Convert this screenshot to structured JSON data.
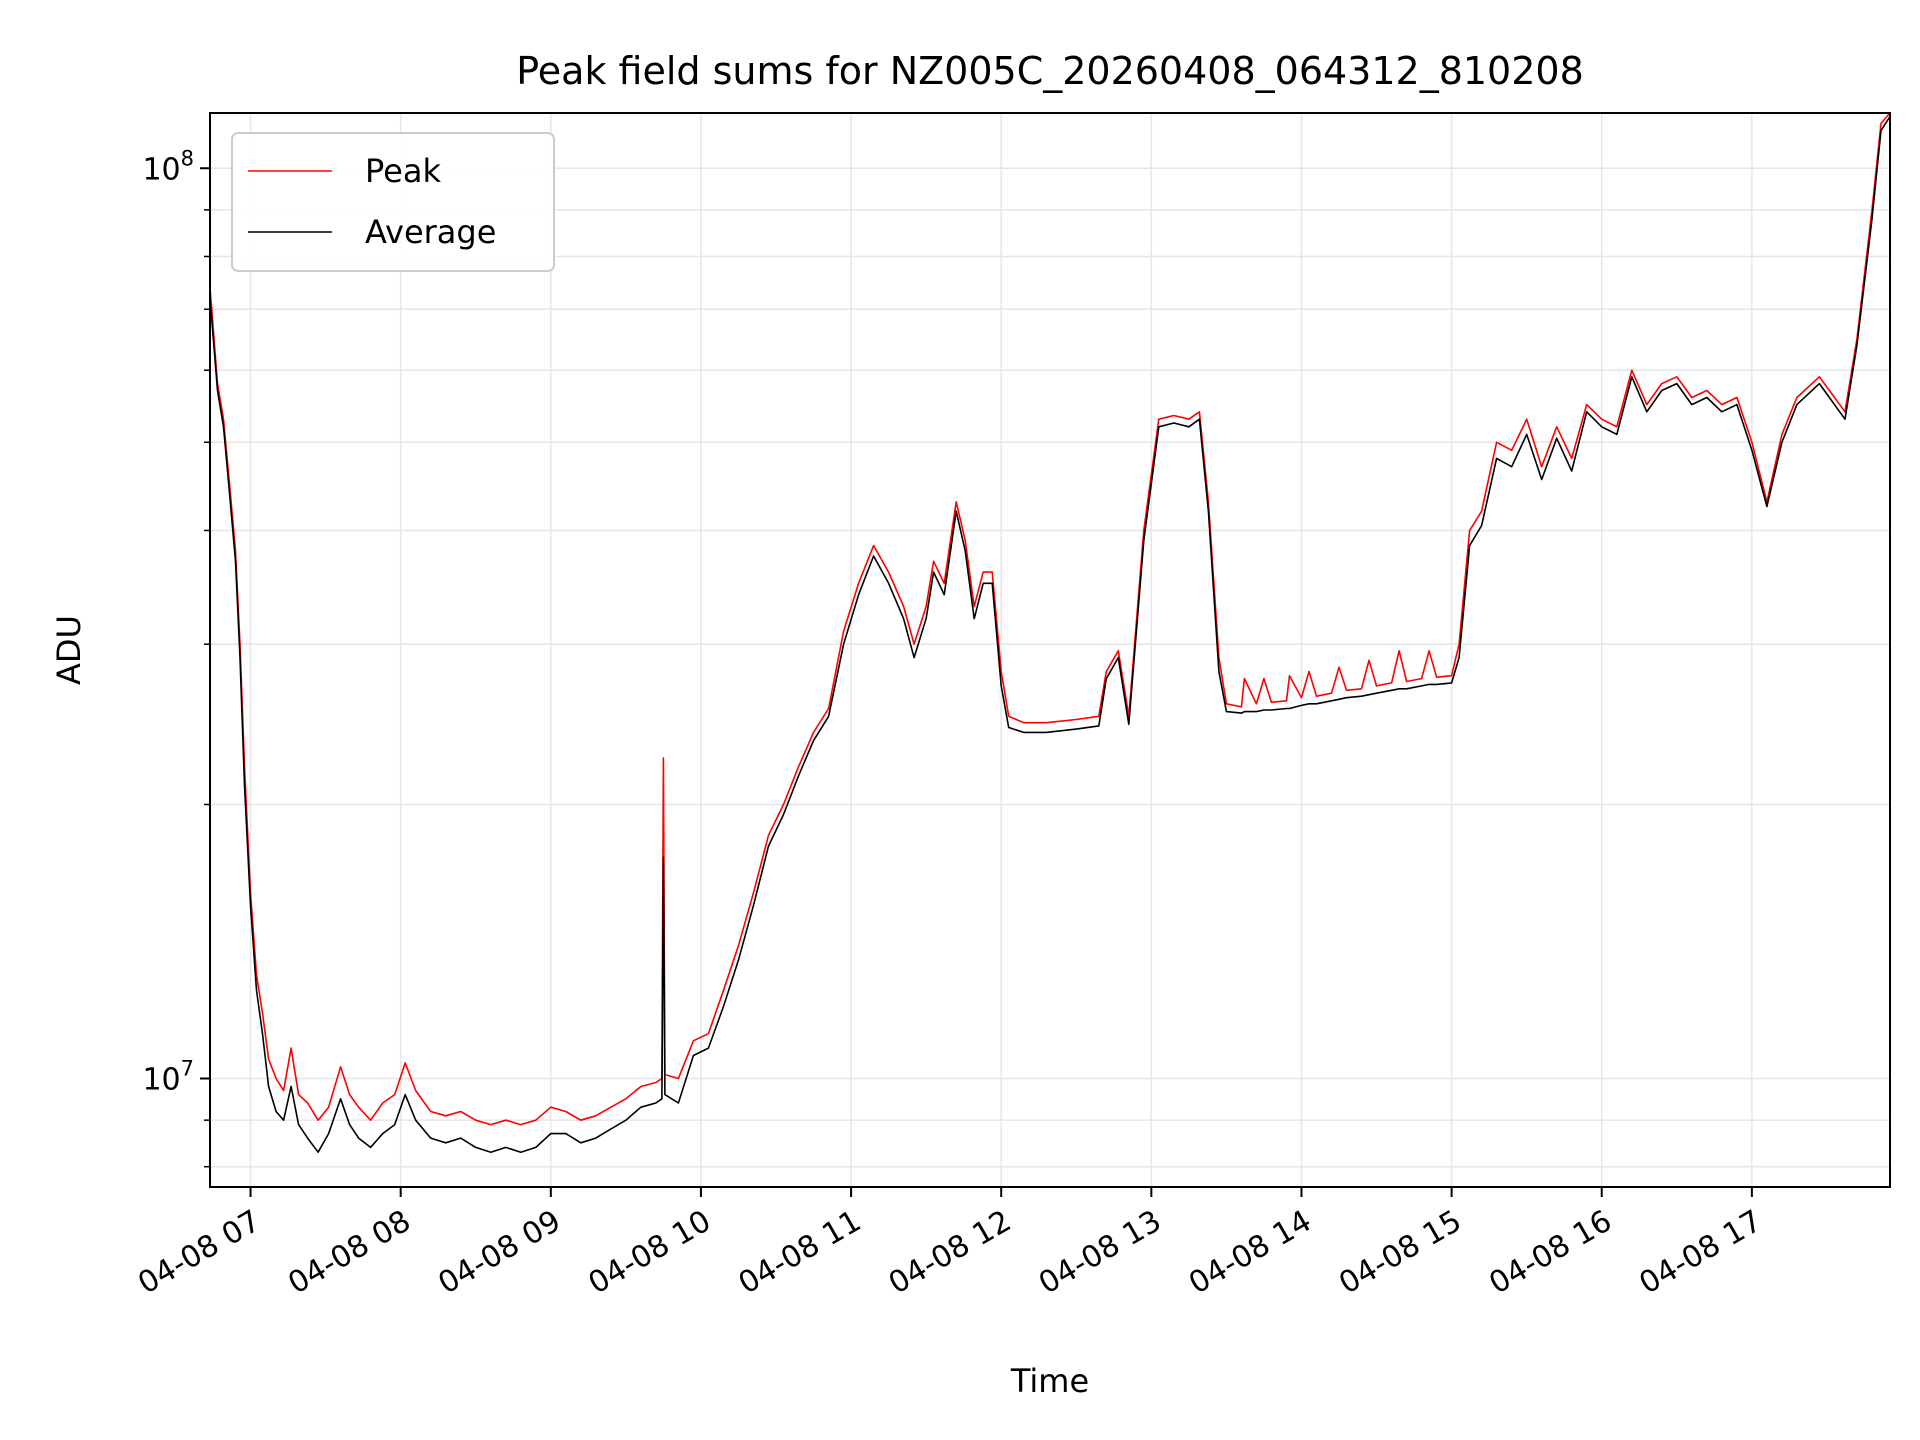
{
  "chart_data": {
    "type": "line",
    "title": "Peak field sums for NZ005C_20260408_064312_810208",
    "xlabel": "Time",
    "ylabel": "ADU",
    "yscale": "log",
    "ylim": [
      7600000,
      115000000
    ],
    "xlim": [
      6.73,
      17.92
    ],
    "grid": true,
    "legend_position": "upper-left",
    "x_ticks": [
      {
        "value": 7,
        "label": "04-08 07"
      },
      {
        "value": 8,
        "label": "04-08 08"
      },
      {
        "value": 9,
        "label": "04-08 09"
      },
      {
        "value": 10,
        "label": "04-08 10"
      },
      {
        "value": 11,
        "label": "04-08 11"
      },
      {
        "value": 12,
        "label": "04-08 12"
      },
      {
        "value": 13,
        "label": "04-08 13"
      },
      {
        "value": 14,
        "label": "04-08 14"
      },
      {
        "value": 15,
        "label": "04-08 15"
      },
      {
        "value": 16,
        "label": "04-08 16"
      },
      {
        "value": 17,
        "label": "04-08 17"
      }
    ],
    "y_ticks_major": [
      {
        "value": 10000000,
        "base": "10",
        "exp": "7"
      },
      {
        "value": 100000000,
        "base": "10",
        "exp": "8"
      }
    ],
    "y_ticks_minor": [
      8000000,
      9000000,
      20000000,
      30000000,
      40000000,
      50000000,
      60000000,
      70000000,
      80000000,
      90000000
    ],
    "series": [
      {
        "name": "Peak",
        "color": "#ff0000",
        "points": [
          [
            6.73,
            74000000
          ],
          [
            6.78,
            58000000
          ],
          [
            6.82,
            53000000
          ],
          [
            6.86,
            45000000
          ],
          [
            6.9,
            38000000
          ],
          [
            6.93,
            30000000
          ],
          [
            6.96,
            22000000
          ],
          [
            7.0,
            16000000
          ],
          [
            7.04,
            13000000
          ],
          [
            7.08,
            11800000
          ],
          [
            7.12,
            10500000
          ],
          [
            7.17,
            10000000
          ],
          [
            7.22,
            9700000
          ],
          [
            7.27,
            10800000
          ],
          [
            7.32,
            9600000
          ],
          [
            7.38,
            9400000
          ],
          [
            7.45,
            9000000
          ],
          [
            7.52,
            9300000
          ],
          [
            7.6,
            10300000
          ],
          [
            7.66,
            9600000
          ],
          [
            7.72,
            9300000
          ],
          [
            7.8,
            9000000
          ],
          [
            7.88,
            9400000
          ],
          [
            7.96,
            9600000
          ],
          [
            8.03,
            10400000
          ],
          [
            8.1,
            9700000
          ],
          [
            8.2,
            9200000
          ],
          [
            8.3,
            9100000
          ],
          [
            8.4,
            9200000
          ],
          [
            8.5,
            9000000
          ],
          [
            8.6,
            8900000
          ],
          [
            8.7,
            9000000
          ],
          [
            8.8,
            8900000
          ],
          [
            8.9,
            9000000
          ],
          [
            9.0,
            9300000
          ],
          [
            9.1,
            9200000
          ],
          [
            9.2,
            9000000
          ],
          [
            9.3,
            9100000
          ],
          [
            9.4,
            9300000
          ],
          [
            9.5,
            9500000
          ],
          [
            9.6,
            9800000
          ],
          [
            9.7,
            9900000
          ],
          [
            9.74,
            10000000
          ],
          [
            9.75,
            22500000
          ],
          [
            9.76,
            10100000
          ],
          [
            9.85,
            10000000
          ],
          [
            9.95,
            11000000
          ],
          [
            10.05,
            11200000
          ],
          [
            10.15,
            12500000
          ],
          [
            10.25,
            14000000
          ],
          [
            10.35,
            16000000
          ],
          [
            10.45,
            18500000
          ],
          [
            10.55,
            20000000
          ],
          [
            10.65,
            22000000
          ],
          [
            10.75,
            24000000
          ],
          [
            10.85,
            25500000
          ],
          [
            10.95,
            31000000
          ],
          [
            11.05,
            35000000
          ],
          [
            11.15,
            38500000
          ],
          [
            11.25,
            36000000
          ],
          [
            11.35,
            33000000
          ],
          [
            11.42,
            30000000
          ],
          [
            11.5,
            33000000
          ],
          [
            11.55,
            37000000
          ],
          [
            11.62,
            35000000
          ],
          [
            11.7,
            43000000
          ],
          [
            11.76,
            39000000
          ],
          [
            11.82,
            33000000
          ],
          [
            11.88,
            36000000
          ],
          [
            11.94,
            36000000
          ],
          [
            12.0,
            28000000
          ],
          [
            12.05,
            25000000
          ],
          [
            12.15,
            24600000
          ],
          [
            12.3,
            24600000
          ],
          [
            12.5,
            24800000
          ],
          [
            12.65,
            25000000
          ],
          [
            12.7,
            28000000
          ],
          [
            12.78,
            29500000
          ],
          [
            12.85,
            25000000
          ],
          [
            12.95,
            40000000
          ],
          [
            13.05,
            53000000
          ],
          [
            13.15,
            53500000
          ],
          [
            13.25,
            53000000
          ],
          [
            13.32,
            54000000
          ],
          [
            13.38,
            43000000
          ],
          [
            13.45,
            29000000
          ],
          [
            13.5,
            25800000
          ],
          [
            13.6,
            25600000
          ],
          [
            13.62,
            27500000
          ],
          [
            13.7,
            25800000
          ],
          [
            13.75,
            27500000
          ],
          [
            13.8,
            25900000
          ],
          [
            13.9,
            26000000
          ],
          [
            13.92,
            27700000
          ],
          [
            14.0,
            26200000
          ],
          [
            14.05,
            28000000
          ],
          [
            14.1,
            26300000
          ],
          [
            14.2,
            26500000
          ],
          [
            14.25,
            28300000
          ],
          [
            14.3,
            26700000
          ],
          [
            14.4,
            26800000
          ],
          [
            14.45,
            28800000
          ],
          [
            14.5,
            27000000
          ],
          [
            14.6,
            27200000
          ],
          [
            14.65,
            29500000
          ],
          [
            14.7,
            27300000
          ],
          [
            14.8,
            27500000
          ],
          [
            14.85,
            29500000
          ],
          [
            14.9,
            27600000
          ],
          [
            15.0,
            27700000
          ],
          [
            15.05,
            30000000
          ],
          [
            15.12,
            40000000
          ],
          [
            15.2,
            42000000
          ],
          [
            15.3,
            50000000
          ],
          [
            15.4,
            49000000
          ],
          [
            15.5,
            53000000
          ],
          [
            15.6,
            47000000
          ],
          [
            15.7,
            52000000
          ],
          [
            15.8,
            48000000
          ],
          [
            15.9,
            55000000
          ],
          [
            16.0,
            53000000
          ],
          [
            16.1,
            52000000
          ],
          [
            16.2,
            60000000
          ],
          [
            16.3,
            55000000
          ],
          [
            16.4,
            58000000
          ],
          [
            16.5,
            59000000
          ],
          [
            16.6,
            56000000
          ],
          [
            16.7,
            57000000
          ],
          [
            16.8,
            55000000
          ],
          [
            16.9,
            56000000
          ],
          [
            17.0,
            50000000
          ],
          [
            17.1,
            43000000
          ],
          [
            17.2,
            51000000
          ],
          [
            17.3,
            56000000
          ],
          [
            17.45,
            59000000
          ],
          [
            17.55,
            56000000
          ],
          [
            17.62,
            54000000
          ],
          [
            17.7,
            65000000
          ],
          [
            17.8,
            90000000
          ],
          [
            17.86,
            112000000
          ],
          [
            17.92,
            115000000
          ]
        ]
      },
      {
        "name": "Average",
        "color": "#000000",
        "points": [
          [
            6.73,
            72000000
          ],
          [
            6.78,
            57000000
          ],
          [
            6.82,
            52000000
          ],
          [
            6.86,
            44000000
          ],
          [
            6.9,
            37000000
          ],
          [
            6.93,
            29000000
          ],
          [
            6.96,
            21000000
          ],
          [
            7.0,
            15500000
          ],
          [
            7.04,
            12500000
          ],
          [
            7.08,
            11200000
          ],
          [
            7.12,
            9800000
          ],
          [
            7.17,
            9200000
          ],
          [
            7.22,
            9000000
          ],
          [
            7.27,
            9800000
          ],
          [
            7.32,
            8900000
          ],
          [
            7.38,
            8600000
          ],
          [
            7.45,
            8300000
          ],
          [
            7.52,
            8700000
          ],
          [
            7.6,
            9500000
          ],
          [
            7.66,
            8900000
          ],
          [
            7.72,
            8600000
          ],
          [
            7.8,
            8400000
          ],
          [
            7.88,
            8700000
          ],
          [
            7.96,
            8900000
          ],
          [
            8.03,
            9600000
          ],
          [
            8.1,
            9000000
          ],
          [
            8.2,
            8600000
          ],
          [
            8.3,
            8500000
          ],
          [
            8.4,
            8600000
          ],
          [
            8.5,
            8400000
          ],
          [
            8.6,
            8300000
          ],
          [
            8.7,
            8400000
          ],
          [
            8.8,
            8300000
          ],
          [
            8.9,
            8400000
          ],
          [
            9.0,
            8700000
          ],
          [
            9.1,
            8700000
          ],
          [
            9.2,
            8500000
          ],
          [
            9.3,
            8600000
          ],
          [
            9.4,
            8800000
          ],
          [
            9.5,
            9000000
          ],
          [
            9.6,
            9300000
          ],
          [
            9.7,
            9400000
          ],
          [
            9.74,
            9500000
          ],
          [
            9.75,
            17500000
          ],
          [
            9.76,
            9600000
          ],
          [
            9.85,
            9400000
          ],
          [
            9.95,
            10600000
          ],
          [
            10.05,
            10800000
          ],
          [
            10.15,
            12000000
          ],
          [
            10.25,
            13500000
          ],
          [
            10.35,
            15500000
          ],
          [
            10.45,
            18000000
          ],
          [
            10.55,
            19500000
          ],
          [
            10.65,
            21500000
          ],
          [
            10.75,
            23500000
          ],
          [
            10.85,
            25000000
          ],
          [
            10.95,
            30000000
          ],
          [
            11.05,
            34000000
          ],
          [
            11.15,
            37500000
          ],
          [
            11.25,
            35000000
          ],
          [
            11.35,
            32000000
          ],
          [
            11.42,
            29000000
          ],
          [
            11.5,
            32000000
          ],
          [
            11.55,
            36000000
          ],
          [
            11.62,
            34000000
          ],
          [
            11.7,
            42000000
          ],
          [
            11.76,
            38000000
          ],
          [
            11.82,
            32000000
          ],
          [
            11.88,
            35000000
          ],
          [
            11.94,
            35000000
          ],
          [
            12.0,
            27000000
          ],
          [
            12.05,
            24300000
          ],
          [
            12.15,
            24000000
          ],
          [
            12.3,
            24000000
          ],
          [
            12.5,
            24200000
          ],
          [
            12.65,
            24400000
          ],
          [
            12.7,
            27500000
          ],
          [
            12.78,
            29000000
          ],
          [
            12.85,
            24500000
          ],
          [
            12.95,
            39000000
          ],
          [
            13.05,
            52000000
          ],
          [
            13.15,
            52500000
          ],
          [
            13.25,
            52000000
          ],
          [
            13.32,
            53000000
          ],
          [
            13.38,
            42000000
          ],
          [
            13.45,
            28000000
          ],
          [
            13.5,
            25300000
          ],
          [
            13.6,
            25200000
          ],
          [
            13.62,
            25300000
          ],
          [
            13.7,
            25300000
          ],
          [
            13.75,
            25400000
          ],
          [
            13.8,
            25400000
          ],
          [
            13.9,
            25500000
          ],
          [
            13.92,
            25500000
          ],
          [
            14.0,
            25700000
          ],
          [
            14.05,
            25800000
          ],
          [
            14.1,
            25800000
          ],
          [
            14.2,
            26000000
          ],
          [
            14.25,
            26100000
          ],
          [
            14.3,
            26200000
          ],
          [
            14.4,
            26300000
          ],
          [
            14.45,
            26400000
          ],
          [
            14.5,
            26500000
          ],
          [
            14.6,
            26700000
          ],
          [
            14.65,
            26800000
          ],
          [
            14.7,
            26800000
          ],
          [
            14.8,
            27000000
          ],
          [
            14.85,
            27100000
          ],
          [
            14.9,
            27100000
          ],
          [
            15.0,
            27200000
          ],
          [
            15.05,
            29000000
          ],
          [
            15.12,
            38500000
          ],
          [
            15.2,
            40500000
          ],
          [
            15.3,
            48000000
          ],
          [
            15.4,
            47000000
          ],
          [
            15.5,
            51000000
          ],
          [
            15.6,
            45500000
          ],
          [
            15.7,
            50500000
          ],
          [
            15.8,
            46500000
          ],
          [
            15.9,
            54000000
          ],
          [
            16.0,
            52000000
          ],
          [
            16.1,
            51000000
          ],
          [
            16.2,
            59000000
          ],
          [
            16.3,
            54000000
          ],
          [
            16.4,
            57000000
          ],
          [
            16.5,
            58000000
          ],
          [
            16.6,
            55000000
          ],
          [
            16.7,
            56000000
          ],
          [
            16.8,
            54000000
          ],
          [
            16.9,
            55000000
          ],
          [
            17.0,
            49000000
          ],
          [
            17.1,
            42500000
          ],
          [
            17.2,
            50000000
          ],
          [
            17.3,
            55000000
          ],
          [
            17.45,
            58000000
          ],
          [
            17.55,
            55000000
          ],
          [
            17.62,
            53000000
          ],
          [
            17.7,
            64000000
          ],
          [
            17.8,
            88000000
          ],
          [
            17.86,
            110000000
          ],
          [
            17.92,
            114000000
          ]
        ]
      }
    ]
  }
}
